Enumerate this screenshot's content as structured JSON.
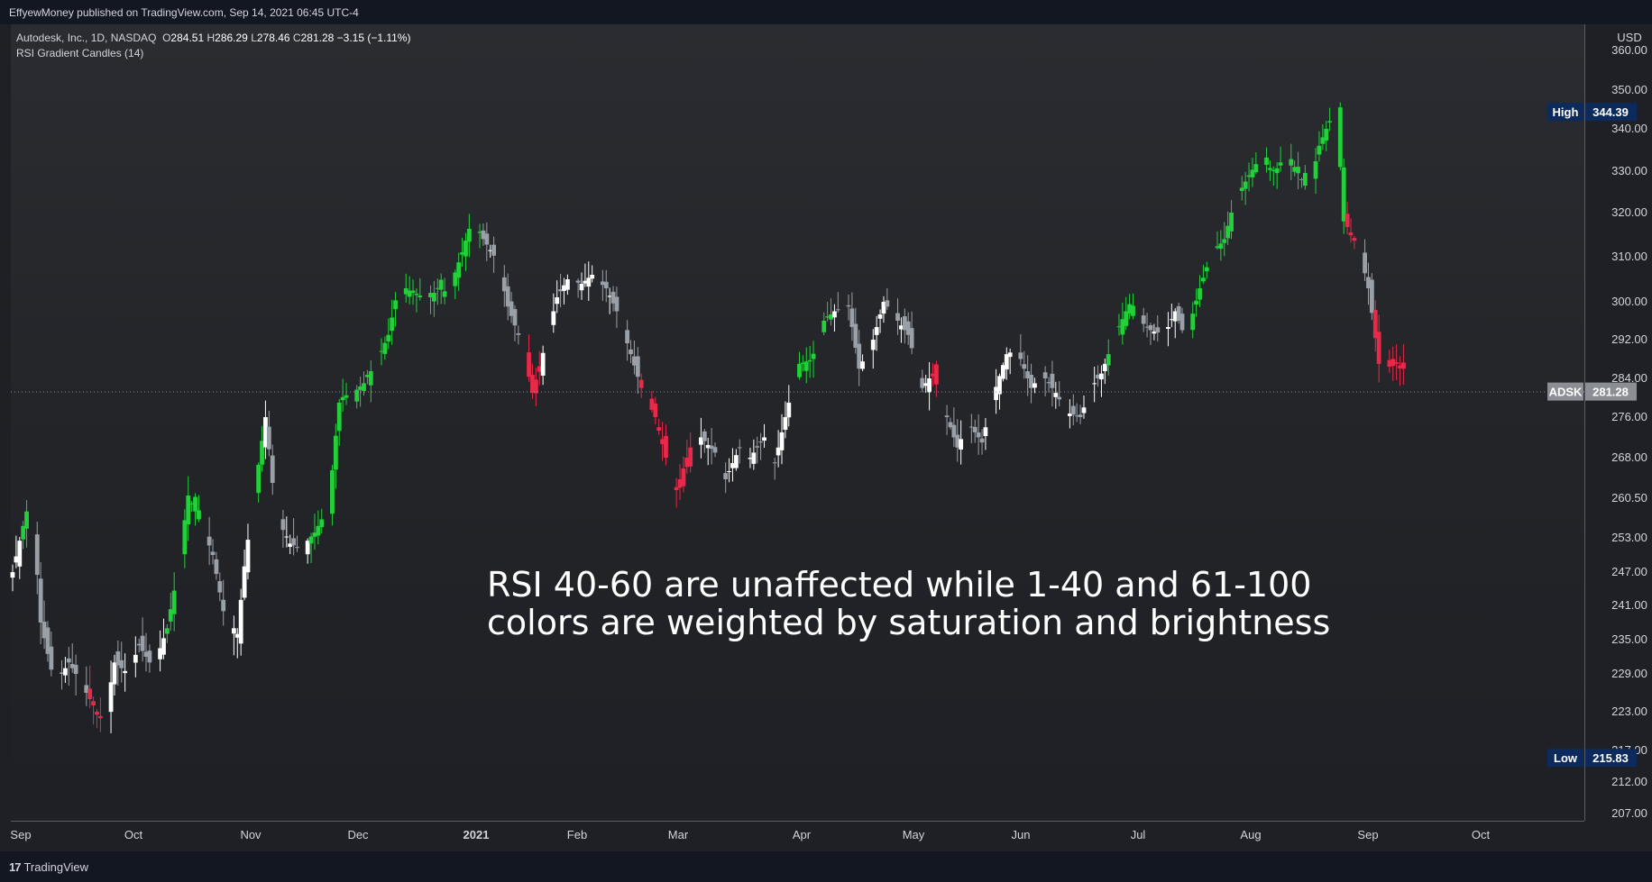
{
  "header": {
    "published": "EffyewMoney published on TradingView.com, Sep 14, 2021 06:45 UTC-4"
  },
  "legend": {
    "symbol": "Autodesk, Inc., 1D, NASDAQ",
    "open_label": "O",
    "open": "284.51",
    "high_label": "H",
    "high": "286.29",
    "low_label": "L",
    "low": "278.46",
    "close_label": "C",
    "close": "281.28",
    "change": "−3.15 (−1.11%)",
    "indicator": "RSI Gradient Candles (14)"
  },
  "annotation": {
    "line1": "RSI 40-60 are unaffected while 1-40 and 61-100",
    "line2": "colors are weighted by saturation and brightness"
  },
  "footer": {
    "brand": "TradingView",
    "logo_glyph": "17"
  },
  "colors": {
    "bull": "#22d13a",
    "bear": "#e8294a",
    "neutral_up": "#ffffff",
    "neutral_down": "#9aa0a8",
    "high_badge": "#0d2a5c",
    "price_badge": "#8b8e95"
  },
  "chart_data": {
    "type": "candlestick",
    "currency": "USD",
    "y_ticks": [
      207,
      212,
      217,
      223,
      229,
      235,
      241,
      247,
      253,
      260.5,
      268,
      276,
      284,
      292,
      300,
      310,
      320,
      330,
      340,
      350,
      360
    ],
    "y_tick_labels": [
      "207.00",
      "212.00",
      "217.00",
      "223.00",
      "229.00",
      "235.00",
      "241.00",
      "247.00",
      "253.00",
      "260.50",
      "268.00",
      "276.00",
      "284.00",
      "292.00",
      "300.00",
      "310.00",
      "320.00",
      "330.00",
      "340.00",
      "350.00",
      "360.00"
    ],
    "x_ticks": [
      "Sep",
      "Oct",
      "Nov",
      "Dec",
      "2021",
      "Feb",
      "Mar",
      "Apr",
      "May",
      "Jun",
      "Jul",
      "Aug",
      "Sep",
      "Oct"
    ],
    "markers": {
      "high": {
        "label": "High",
        "value": "344.39"
      },
      "low": {
        "label": "Low",
        "value": "215.83"
      },
      "last": {
        "label": "ADSK",
        "value": "281.28"
      }
    },
    "anchors": [
      {
        "d": 0,
        "p": 247
      },
      {
        "d": 4,
        "p": 258
      },
      {
        "d": 6,
        "p": 255
      },
      {
        "d": 8,
        "p": 238
      },
      {
        "d": 12,
        "p": 227
      },
      {
        "d": 16,
        "p": 231
      },
      {
        "d": 19,
        "p": 228
      },
      {
        "d": 23,
        "p": 224
      },
      {
        "d": 26,
        "p": 221
      },
      {
        "d": 29,
        "p": 231
      },
      {
        "d": 33,
        "p": 229
      },
      {
        "d": 36,
        "p": 234
      },
      {
        "d": 40,
        "p": 230
      },
      {
        "d": 44,
        "p": 237
      },
      {
        "d": 47,
        "p": 247
      },
      {
        "d": 50,
        "p": 261
      },
      {
        "d": 54,
        "p": 255
      },
      {
        "d": 57,
        "p": 250
      },
      {
        "d": 60,
        "p": 240
      },
      {
        "d": 64,
        "p": 236
      },
      {
        "d": 66,
        "p": 248
      },
      {
        "d": 69,
        "p": 262
      },
      {
        "d": 72,
        "p": 276
      },
      {
        "d": 75,
        "p": 257
      },
      {
        "d": 79,
        "p": 252
      },
      {
        "d": 82,
        "p": 251
      },
      {
        "d": 86,
        "p": 254
      },
      {
        "d": 90,
        "p": 259
      },
      {
        "d": 93,
        "p": 279
      },
      {
        "d": 97,
        "p": 281
      },
      {
        "d": 100,
        "p": 283
      },
      {
        "d": 104,
        "p": 288
      },
      {
        "d": 107,
        "p": 293
      },
      {
        "d": 110,
        "p": 304
      },
      {
        "d": 114,
        "p": 302
      },
      {
        "d": 118,
        "p": 300
      },
      {
        "d": 121,
        "p": 303
      },
      {
        "d": 124,
        "p": 302
      },
      {
        "d": 128,
        "p": 311
      },
      {
        "d": 131,
        "p": 319
      },
      {
        "d": 134,
        "p": 314
      },
      {
        "d": 138,
        "p": 309
      },
      {
        "d": 141,
        "p": 299
      },
      {
        "d": 145,
        "p": 291
      },
      {
        "d": 148,
        "p": 281
      },
      {
        "d": 152,
        "p": 292
      },
      {
        "d": 155,
        "p": 301
      },
      {
        "d": 158,
        "p": 305
      },
      {
        "d": 162,
        "p": 304
      },
      {
        "d": 165,
        "p": 306
      },
      {
        "d": 169,
        "p": 303
      },
      {
        "d": 172,
        "p": 298
      },
      {
        "d": 176,
        "p": 289
      },
      {
        "d": 179,
        "p": 282
      },
      {
        "d": 183,
        "p": 276
      },
      {
        "d": 186,
        "p": 268
      },
      {
        "d": 189,
        "p": 262
      },
      {
        "d": 193,
        "p": 270
      },
      {
        "d": 196,
        "p": 272
      },
      {
        "d": 200,
        "p": 269
      },
      {
        "d": 203,
        "p": 264
      },
      {
        "d": 207,
        "p": 270
      },
      {
        "d": 210,
        "p": 268
      },
      {
        "d": 214,
        "p": 272
      },
      {
        "d": 217,
        "p": 267
      },
      {
        "d": 221,
        "p": 279
      },
      {
        "d": 224,
        "p": 287
      },
      {
        "d": 228,
        "p": 288
      },
      {
        "d": 231,
        "p": 296
      },
      {
        "d": 234,
        "p": 298
      },
      {
        "d": 238,
        "p": 299
      },
      {
        "d": 241,
        "p": 286
      },
      {
        "d": 245,
        "p": 292
      },
      {
        "d": 248,
        "p": 300
      },
      {
        "d": 252,
        "p": 296
      },
      {
        "d": 255,
        "p": 293
      },
      {
        "d": 259,
        "p": 282
      },
      {
        "d": 262,
        "p": 285
      },
      {
        "d": 266,
        "p": 276
      },
      {
        "d": 269,
        "p": 270
      },
      {
        "d": 272,
        "p": 275
      },
      {
        "d": 276,
        "p": 271
      },
      {
        "d": 279,
        "p": 280
      },
      {
        "d": 283,
        "p": 289
      },
      {
        "d": 286,
        "p": 290
      },
      {
        "d": 290,
        "p": 282
      },
      {
        "d": 293,
        "p": 285
      },
      {
        "d": 297,
        "p": 281
      },
      {
        "d": 300,
        "p": 277
      },
      {
        "d": 304,
        "p": 276
      },
      {
        "d": 307,
        "p": 282
      },
      {
        "d": 310,
        "p": 285
      },
      {
        "d": 314,
        "p": 293
      },
      {
        "d": 317,
        "p": 298
      },
      {
        "d": 321,
        "p": 296
      },
      {
        "d": 324,
        "p": 294
      },
      {
        "d": 328,
        "p": 293
      },
      {
        "d": 331,
        "p": 298
      },
      {
        "d": 334,
        "p": 292
      },
      {
        "d": 338,
        "p": 303
      },
      {
        "d": 341,
        "p": 310
      },
      {
        "d": 345,
        "p": 314
      },
      {
        "d": 348,
        "p": 323
      },
      {
        "d": 352,
        "p": 329
      },
      {
        "d": 355,
        "p": 333
      },
      {
        "d": 359,
        "p": 330
      },
      {
        "d": 362,
        "p": 332
      },
      {
        "d": 365,
        "p": 331
      },
      {
        "d": 369,
        "p": 325
      },
      {
        "d": 372,
        "p": 336
      },
      {
        "d": 375,
        "p": 342
      },
      {
        "d": 377,
        "p": 344
      },
      {
        "d": 379,
        "p": 318
      },
      {
        "d": 383,
        "p": 313
      },
      {
        "d": 386,
        "p": 303
      },
      {
        "d": 389,
        "p": 287
      },
      {
        "d": 393,
        "p": 288
      },
      {
        "d": 396,
        "p": 286
      },
      {
        "d": 398,
        "p": 281
      }
    ],
    "color_regions": [
      {
        "from": 0,
        "to": 3,
        "c": "n"
      },
      {
        "from": 3,
        "to": 6,
        "c": "g"
      },
      {
        "from": 6,
        "to": 22,
        "c": "n"
      },
      {
        "from": 22,
        "to": 26,
        "c": "r"
      },
      {
        "from": 26,
        "to": 44,
        "c": "n"
      },
      {
        "from": 44,
        "to": 54,
        "c": "g"
      },
      {
        "from": 54,
        "to": 69,
        "c": "n"
      },
      {
        "from": 69,
        "to": 72,
        "c": "g"
      },
      {
        "from": 72,
        "to": 85,
        "c": "n"
      },
      {
        "from": 85,
        "to": 134,
        "c": "g"
      },
      {
        "from": 134,
        "to": 145,
        "c": "n"
      },
      {
        "from": 145,
        "to": 151,
        "c": "r"
      },
      {
        "from": 151,
        "to": 179,
        "c": "n"
      },
      {
        "from": 179,
        "to": 183,
        "c": "r"
      },
      {
        "from": 183,
        "to": 191,
        "c": "r"
      },
      {
        "from": 191,
        "to": 196,
        "c": "r"
      },
      {
        "from": 196,
        "to": 224,
        "c": "n"
      },
      {
        "from": 224,
        "to": 234,
        "c": "g"
      },
      {
        "from": 234,
        "to": 262,
        "c": "n"
      },
      {
        "from": 262,
        "to": 266,
        "c": "r"
      },
      {
        "from": 266,
        "to": 291,
        "c": "n"
      },
      {
        "from": 291,
        "to": 305,
        "c": "n"
      },
      {
        "from": 305,
        "to": 307,
        "c": "n"
      },
      {
        "from": 307,
        "to": 312,
        "c": "n"
      },
      {
        "from": 312,
        "to": 322,
        "c": "g"
      },
      {
        "from": 322,
        "to": 334,
        "c": "n"
      },
      {
        "from": 334,
        "to": 380,
        "c": "g"
      },
      {
        "from": 380,
        "to": 384,
        "c": "r"
      },
      {
        "from": 384,
        "to": 388,
        "c": "n"
      },
      {
        "from": 388,
        "to": 399,
        "c": "r"
      }
    ]
  }
}
